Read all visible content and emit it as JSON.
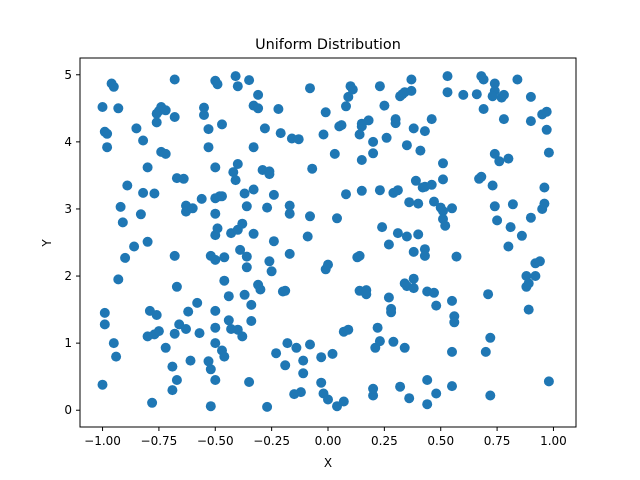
{
  "chart_data": {
    "type": "scatter",
    "title": "Uniform Distribution",
    "xlabel": "X",
    "ylabel": "Y",
    "xlim": [
      -1.1,
      1.1
    ],
    "ylim": [
      -0.25,
      5.25
    ],
    "xticks": [
      -1.0,
      -0.75,
      -0.5,
      -0.25,
      0.0,
      0.25,
      0.5,
      0.75,
      1.0
    ],
    "xtick_labels": [
      "−1.00",
      "−0.75",
      "−0.50",
      "−0.25",
      "0.00",
      "0.25",
      "0.50",
      "0.75",
      "1.00"
    ],
    "yticks": [
      0,
      1,
      2,
      3,
      4,
      5
    ],
    "ytick_labels": [
      "0",
      "1",
      "2",
      "3",
      "4",
      "5"
    ],
    "grid": false,
    "legend": null,
    "marker_color": "#1f77b4",
    "series": [
      {
        "points": [
          [
            -1.0,
            4.52
          ],
          [
            -0.99,
            4.15
          ],
          [
            -0.98,
            4.12
          ],
          [
            -0.98,
            3.92
          ],
          [
            -0.96,
            4.87
          ],
          [
            -0.95,
            4.82
          ],
          [
            -0.93,
            4.5
          ],
          [
            -0.99,
            1.45
          ],
          [
            -0.99,
            1.28
          ],
          [
            -1.0,
            0.38
          ],
          [
            -0.95,
            1.0
          ],
          [
            -0.94,
            0.8
          ],
          [
            -0.93,
            1.95
          ],
          [
            -0.92,
            3.03
          ],
          [
            -0.91,
            2.8
          ],
          [
            -0.9,
            2.27
          ],
          [
            -0.89,
            3.35
          ],
          [
            -0.86,
            2.44
          ],
          [
            -0.85,
            4.2
          ],
          [
            -0.83,
            2.92
          ],
          [
            -0.82,
            3.24
          ],
          [
            -0.82,
            4.02
          ],
          [
            -0.8,
            2.51
          ],
          [
            -0.8,
            3.62
          ],
          [
            -0.79,
            1.48
          ],
          [
            -0.78,
            0.11
          ],
          [
            -0.77,
            3.23
          ],
          [
            -0.76,
            4.42
          ],
          [
            -0.76,
            4.29
          ],
          [
            -0.75,
            4.46
          ],
          [
            -0.74,
            4.52
          ],
          [
            -0.72,
            4.47
          ],
          [
            -0.74,
            3.85
          ],
          [
            -0.72,
            3.82
          ],
          [
            -0.76,
            1.42
          ],
          [
            -0.77,
            1.13
          ],
          [
            -0.75,
            1.18
          ],
          [
            -0.8,
            1.1
          ],
          [
            -0.72,
            0.93
          ],
          [
            -0.69,
            0.3
          ],
          [
            -0.69,
            0.65
          ],
          [
            -0.67,
            0.45
          ],
          [
            -0.68,
            4.37
          ],
          [
            -0.68,
            4.93
          ],
          [
            -0.68,
            2.3
          ],
          [
            -0.67,
            1.84
          ],
          [
            -0.68,
            1.14
          ],
          [
            -0.66,
            1.28
          ],
          [
            -0.63,
            1.21
          ],
          [
            -0.67,
            3.46
          ],
          [
            -0.64,
            3.45
          ],
          [
            -0.63,
            3.05
          ],
          [
            -0.63,
            2.96
          ],
          [
            -0.62,
            1.47
          ],
          [
            -0.6,
            3.01
          ],
          [
            -0.61,
            0.74
          ],
          [
            -0.58,
            1.6
          ],
          [
            -0.57,
            1.15
          ],
          [
            -0.56,
            3.15
          ],
          [
            -0.55,
            4.51
          ],
          [
            -0.55,
            4.4
          ],
          [
            -0.53,
            3.92
          ],
          [
            -0.53,
            4.19
          ],
          [
            -0.52,
            2.3
          ],
          [
            -0.52,
            0.61
          ],
          [
            -0.53,
            0.73
          ],
          [
            -0.52,
            0.06
          ],
          [
            -0.5,
            0.45
          ],
          [
            -0.5,
            1.23
          ],
          [
            -0.5,
            1.0
          ],
          [
            -0.5,
            1.48
          ],
          [
            -0.5,
            2.24
          ],
          [
            -0.5,
            2.61
          ],
          [
            -0.49,
            2.71
          ],
          [
            -0.5,
            2.93
          ],
          [
            -0.5,
            3.16
          ],
          [
            -0.48,
            3.19
          ],
          [
            -0.5,
            3.62
          ],
          [
            -0.5,
            4.91
          ],
          [
            -0.49,
            4.86
          ],
          [
            -0.47,
            4.26
          ],
          [
            -0.47,
            3.19
          ],
          [
            -0.46,
            2.28
          ],
          [
            -0.46,
            1.93
          ],
          [
            -0.47,
            0.89
          ],
          [
            -0.46,
            0.8
          ],
          [
            -0.44,
            1.7
          ],
          [
            -0.44,
            1.34
          ],
          [
            -0.43,
            1.21
          ],
          [
            -0.43,
            2.64
          ],
          [
            -0.42,
            3.55
          ],
          [
            -0.41,
            3.43
          ],
          [
            -0.4,
            3.67
          ],
          [
            -0.4,
            4.83
          ],
          [
            -0.41,
            4.98
          ],
          [
            -0.4,
            2.69
          ],
          [
            -0.39,
            2.39
          ],
          [
            -0.38,
            2.78
          ],
          [
            -0.37,
            3.23
          ],
          [
            -0.36,
            3.04
          ],
          [
            -0.36,
            2.29
          ],
          [
            -0.36,
            2.13
          ],
          [
            -0.37,
            1.72
          ],
          [
            -0.4,
            1.2
          ],
          [
            -0.38,
            1.1
          ],
          [
            -0.34,
            1.33
          ],
          [
            -0.35,
            0.42
          ],
          [
            -0.34,
            1.57
          ],
          [
            -0.33,
            2.63
          ],
          [
            -0.33,
            3.29
          ],
          [
            -0.33,
            3.92
          ],
          [
            -0.33,
            4.54
          ],
          [
            -0.31,
            4.5
          ],
          [
            -0.35,
            4.92
          ],
          [
            -0.31,
            4.7
          ],
          [
            -0.31,
            1.87
          ],
          [
            -0.3,
            1.8
          ],
          [
            -0.29,
            3.58
          ],
          [
            -0.28,
            4.2
          ],
          [
            -0.27,
            3.02
          ],
          [
            -0.26,
            3.56
          ],
          [
            -0.26,
            3.52
          ],
          [
            -0.24,
            2.52
          ],
          [
            -0.26,
            2.22
          ],
          [
            -0.25,
            2.07
          ],
          [
            -0.24,
            3.21
          ],
          [
            -0.27,
            0.05
          ],
          [
            -0.23,
            0.85
          ],
          [
            -0.21,
            4.13
          ],
          [
            -0.22,
            4.49
          ],
          [
            -0.2,
            1.77
          ],
          [
            -0.19,
            1.78
          ],
          [
            -0.19,
            0.67
          ],
          [
            -0.18,
            1.0
          ],
          [
            -0.17,
            2.33
          ],
          [
            -0.17,
            2.93
          ],
          [
            -0.17,
            3.05
          ],
          [
            -0.16,
            4.05
          ],
          [
            -0.14,
            0.93
          ],
          [
            -0.15,
            0.24
          ],
          [
            -0.13,
            4.04
          ],
          [
            -0.12,
            0.27
          ],
          [
            -0.11,
            0.55
          ],
          [
            -0.11,
            0.74
          ],
          [
            -0.08,
            0.98
          ],
          [
            -0.09,
            2.59
          ],
          [
            -0.08,
            2.89
          ],
          [
            -0.07,
            3.6
          ],
          [
            -0.08,
            4.8
          ],
          [
            -0.03,
            0.79
          ],
          [
            -0.03,
            0.41
          ],
          [
            -0.02,
            0.25
          ],
          [
            -0.02,
            4.11
          ],
          [
            -0.01,
            4.44
          ],
          [
            -0.01,
            2.1
          ],
          [
            -0.0,
            2.17
          ],
          [
            0.0,
            0.16
          ],
          [
            0.02,
            0.84
          ],
          [
            0.04,
            0.06
          ],
          [
            0.04,
            2.86
          ],
          [
            0.03,
            3.82
          ],
          [
            0.05,
            4.23
          ],
          [
            0.06,
            4.25
          ],
          [
            0.07,
            0.13
          ],
          [
            0.07,
            1.17
          ],
          [
            0.08,
            3.22
          ],
          [
            0.08,
            4.53
          ],
          [
            0.09,
            1.2
          ],
          [
            0.09,
            4.67
          ],
          [
            0.1,
            4.83
          ],
          [
            0.11,
            4.78
          ],
          [
            0.13,
            2.28
          ],
          [
            0.14,
            2.3
          ],
          [
            0.14,
            1.78
          ],
          [
            0.14,
            4.11
          ],
          [
            0.15,
            4.23
          ],
          [
            0.15,
            4.27
          ],
          [
            0.15,
            3.73
          ],
          [
            0.15,
            3.27
          ],
          [
            0.17,
            1.79
          ],
          [
            0.17,
            1.73
          ],
          [
            0.18,
            4.32
          ],
          [
            0.2,
            3.83
          ],
          [
            0.2,
            4.0
          ],
          [
            0.2,
            0.22
          ],
          [
            0.2,
            0.32
          ],
          [
            0.21,
            0.93
          ],
          [
            0.22,
            1.23
          ],
          [
            0.23,
            1.03
          ],
          [
            0.23,
            4.83
          ],
          [
            0.23,
            3.28
          ],
          [
            0.24,
            2.73
          ],
          [
            0.25,
            4.54
          ],
          [
            0.26,
            4.06
          ],
          [
            0.27,
            2.47
          ],
          [
            0.27,
            1.68
          ],
          [
            0.28,
            1.51
          ],
          [
            0.28,
            1.46
          ],
          [
            0.29,
            3.24
          ],
          [
            0.3,
            4.34
          ],
          [
            0.3,
            4.28
          ],
          [
            0.29,
            1.02
          ],
          [
            0.31,
            2.64
          ],
          [
            0.31,
            3.28
          ],
          [
            0.32,
            4.68
          ],
          [
            0.33,
            4.71
          ],
          [
            0.34,
            4.74
          ],
          [
            0.32,
            0.35
          ],
          [
            0.34,
            0.93
          ],
          [
            0.34,
            1.89
          ],
          [
            0.35,
            1.85
          ],
          [
            0.35,
            2.59
          ],
          [
            0.35,
            3.95
          ],
          [
            0.36,
            3.1
          ],
          [
            0.36,
            0.18
          ],
          [
            0.37,
            4.76
          ],
          [
            0.37,
            4.93
          ],
          [
            0.38,
            4.2
          ],
          [
            0.38,
            2.36
          ],
          [
            0.38,
            1.96
          ],
          [
            0.38,
            1.82
          ],
          [
            0.4,
            2.62
          ],
          [
            0.39,
            3.42
          ],
          [
            0.4,
            3.08
          ],
          [
            0.41,
            3.87
          ],
          [
            0.42,
            3.32
          ],
          [
            0.43,
            3.33
          ],
          [
            0.43,
            2.4
          ],
          [
            0.43,
            2.3
          ],
          [
            0.44,
            0.09
          ],
          [
            0.44,
            0.45
          ],
          [
            0.44,
            1.77
          ],
          [
            0.43,
            4.16
          ],
          [
            0.46,
            4.34
          ],
          [
            0.46,
            3.36
          ],
          [
            0.47,
            3.11
          ],
          [
            0.47,
            1.75
          ],
          [
            0.48,
            1.56
          ],
          [
            0.48,
            0.25
          ],
          [
            0.5,
            3.02
          ],
          [
            0.51,
            3.68
          ],
          [
            0.51,
            2.97
          ],
          [
            0.51,
            2.85
          ],
          [
            0.51,
            3.44
          ],
          [
            0.52,
            2.75
          ],
          [
            0.53,
            4.98
          ],
          [
            0.53,
            4.74
          ],
          [
            0.55,
            3.01
          ],
          [
            0.55,
            1.63
          ],
          [
            0.56,
            1.4
          ],
          [
            0.56,
            1.31
          ],
          [
            0.55,
            0.87
          ],
          [
            0.55,
            0.36
          ],
          [
            0.57,
            2.29
          ],
          [
            0.6,
            4.7
          ],
          [
            0.66,
            4.71
          ],
          [
            0.67,
            3.45
          ],
          [
            0.68,
            3.48
          ],
          [
            0.68,
            4.98
          ],
          [
            0.69,
            4.93
          ],
          [
            0.69,
            4.49
          ],
          [
            0.7,
            0.87
          ],
          [
            0.71,
            1.73
          ],
          [
            0.72,
            1.08
          ],
          [
            0.72,
            0.22
          ],
          [
            0.74,
            4.87
          ],
          [
            0.74,
            4.76
          ],
          [
            0.73,
            4.68
          ],
          [
            0.74,
            3.82
          ],
          [
            0.73,
            3.35
          ],
          [
            0.74,
            3.04
          ],
          [
            0.75,
            2.83
          ],
          [
            0.76,
            3.71
          ],
          [
            0.77,
            4.66
          ],
          [
            0.78,
            4.7
          ],
          [
            0.78,
            4.34
          ],
          [
            0.8,
            3.75
          ],
          [
            0.8,
            2.44
          ],
          [
            0.81,
            2.73
          ],
          [
            0.82,
            3.07
          ],
          [
            0.84,
            4.93
          ],
          [
            0.86,
            2.6
          ],
          [
            0.88,
            1.84
          ],
          [
            0.88,
            2.0
          ],
          [
            0.89,
            1.89
          ],
          [
            0.89,
            1.5
          ],
          [
            0.9,
            4.67
          ],
          [
            0.9,
            4.31
          ],
          [
            0.9,
            2.87
          ],
          [
            0.92,
            2.19
          ],
          [
            0.92,
            2.0
          ],
          [
            0.94,
            2.22
          ],
          [
            0.95,
            3.0
          ],
          [
            0.95,
            4.41
          ],
          [
            0.96,
            3.08
          ],
          [
            0.96,
            3.32
          ],
          [
            0.97,
            4.45
          ],
          [
            0.97,
            4.18
          ],
          [
            0.98,
            3.84
          ],
          [
            0.98,
            0.43
          ]
        ]
      }
    ]
  }
}
